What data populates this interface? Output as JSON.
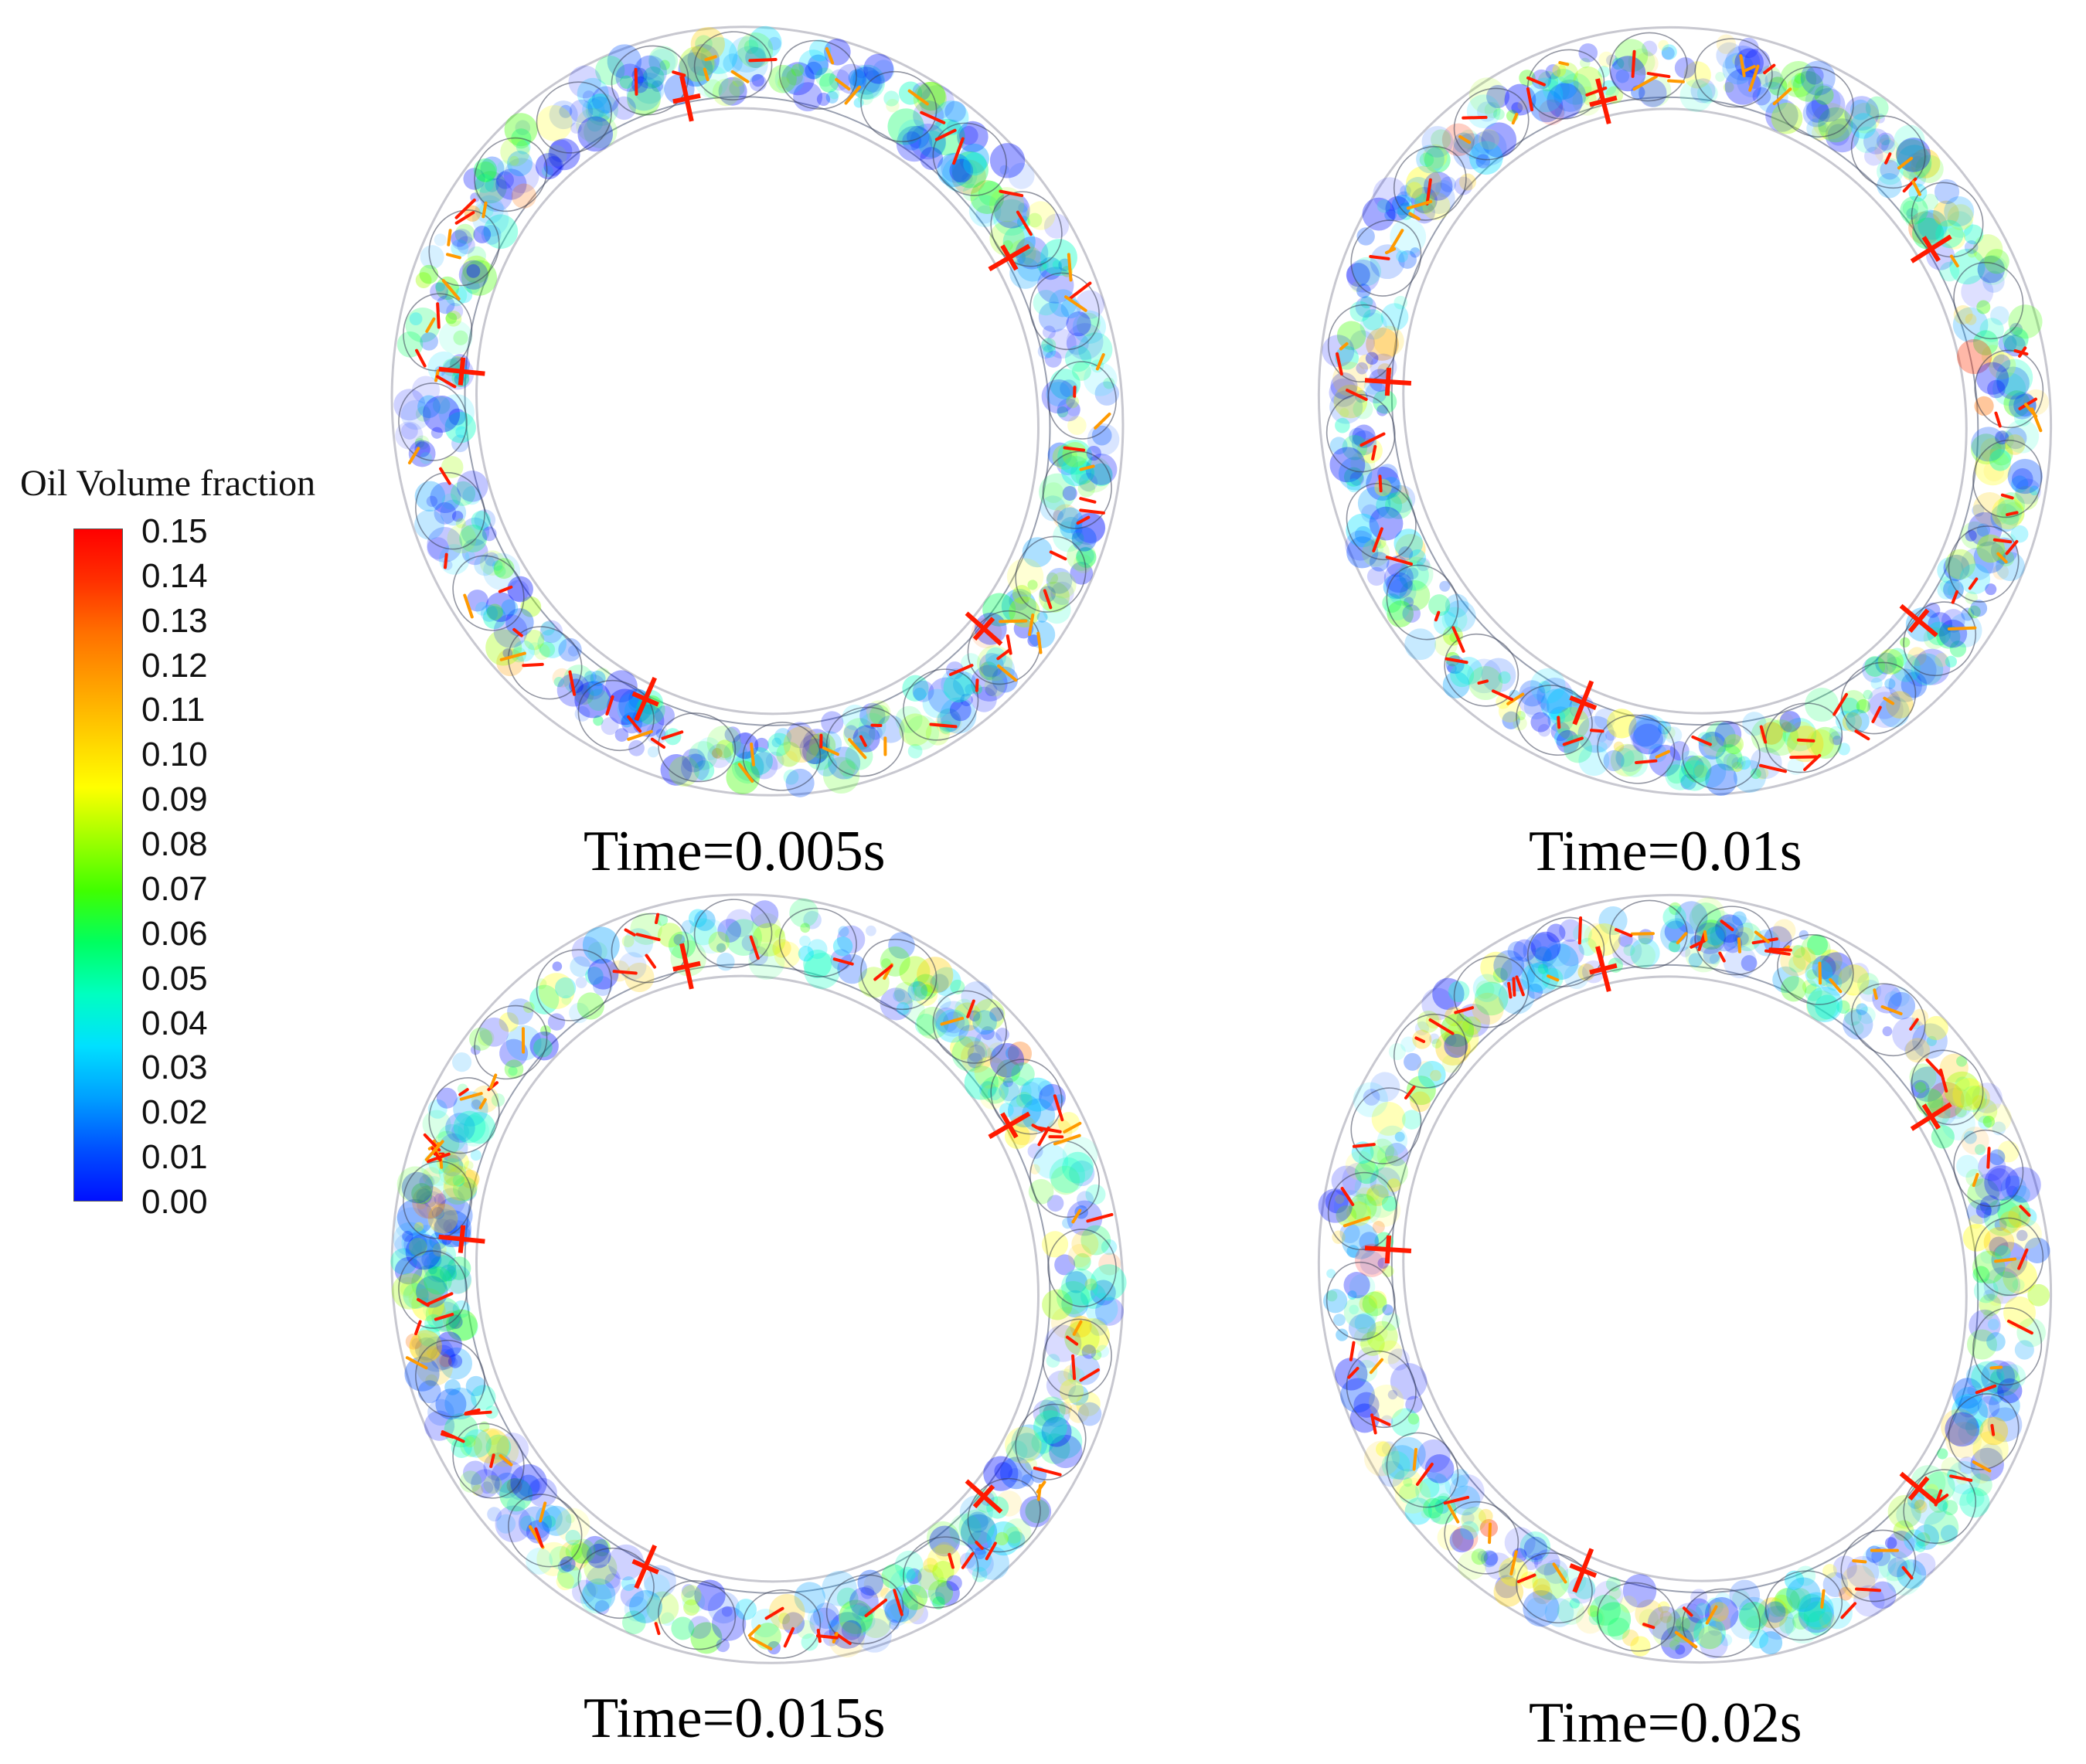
{
  "legend": {
    "title": "Oil Volume fraction",
    "colors": [
      "#0010ff",
      "#0050ff",
      "#00a0ff",
      "#00e0ff",
      "#00ffc0",
      "#00ff60",
      "#40ff00",
      "#a0ff00",
      "#ffff00",
      "#ffd000",
      "#ffa000",
      "#ff7000",
      "#ff3000",
      "#ff0000"
    ],
    "ticks": [
      "0.15",
      "0.14",
      "0.13",
      "0.12",
      "0.11",
      "0.10",
      "0.09",
      "0.08",
      "0.07",
      "0.06",
      "0.05",
      "0.04",
      "0.03",
      "0.02",
      "0.01",
      "0.00"
    ]
  },
  "panels": [
    {
      "caption": "Time=0.005s"
    },
    {
      "caption": "Time=0.01s"
    },
    {
      "caption": "Time=0.015s"
    },
    {
      "caption": "Time=0.02s"
    }
  ]
}
